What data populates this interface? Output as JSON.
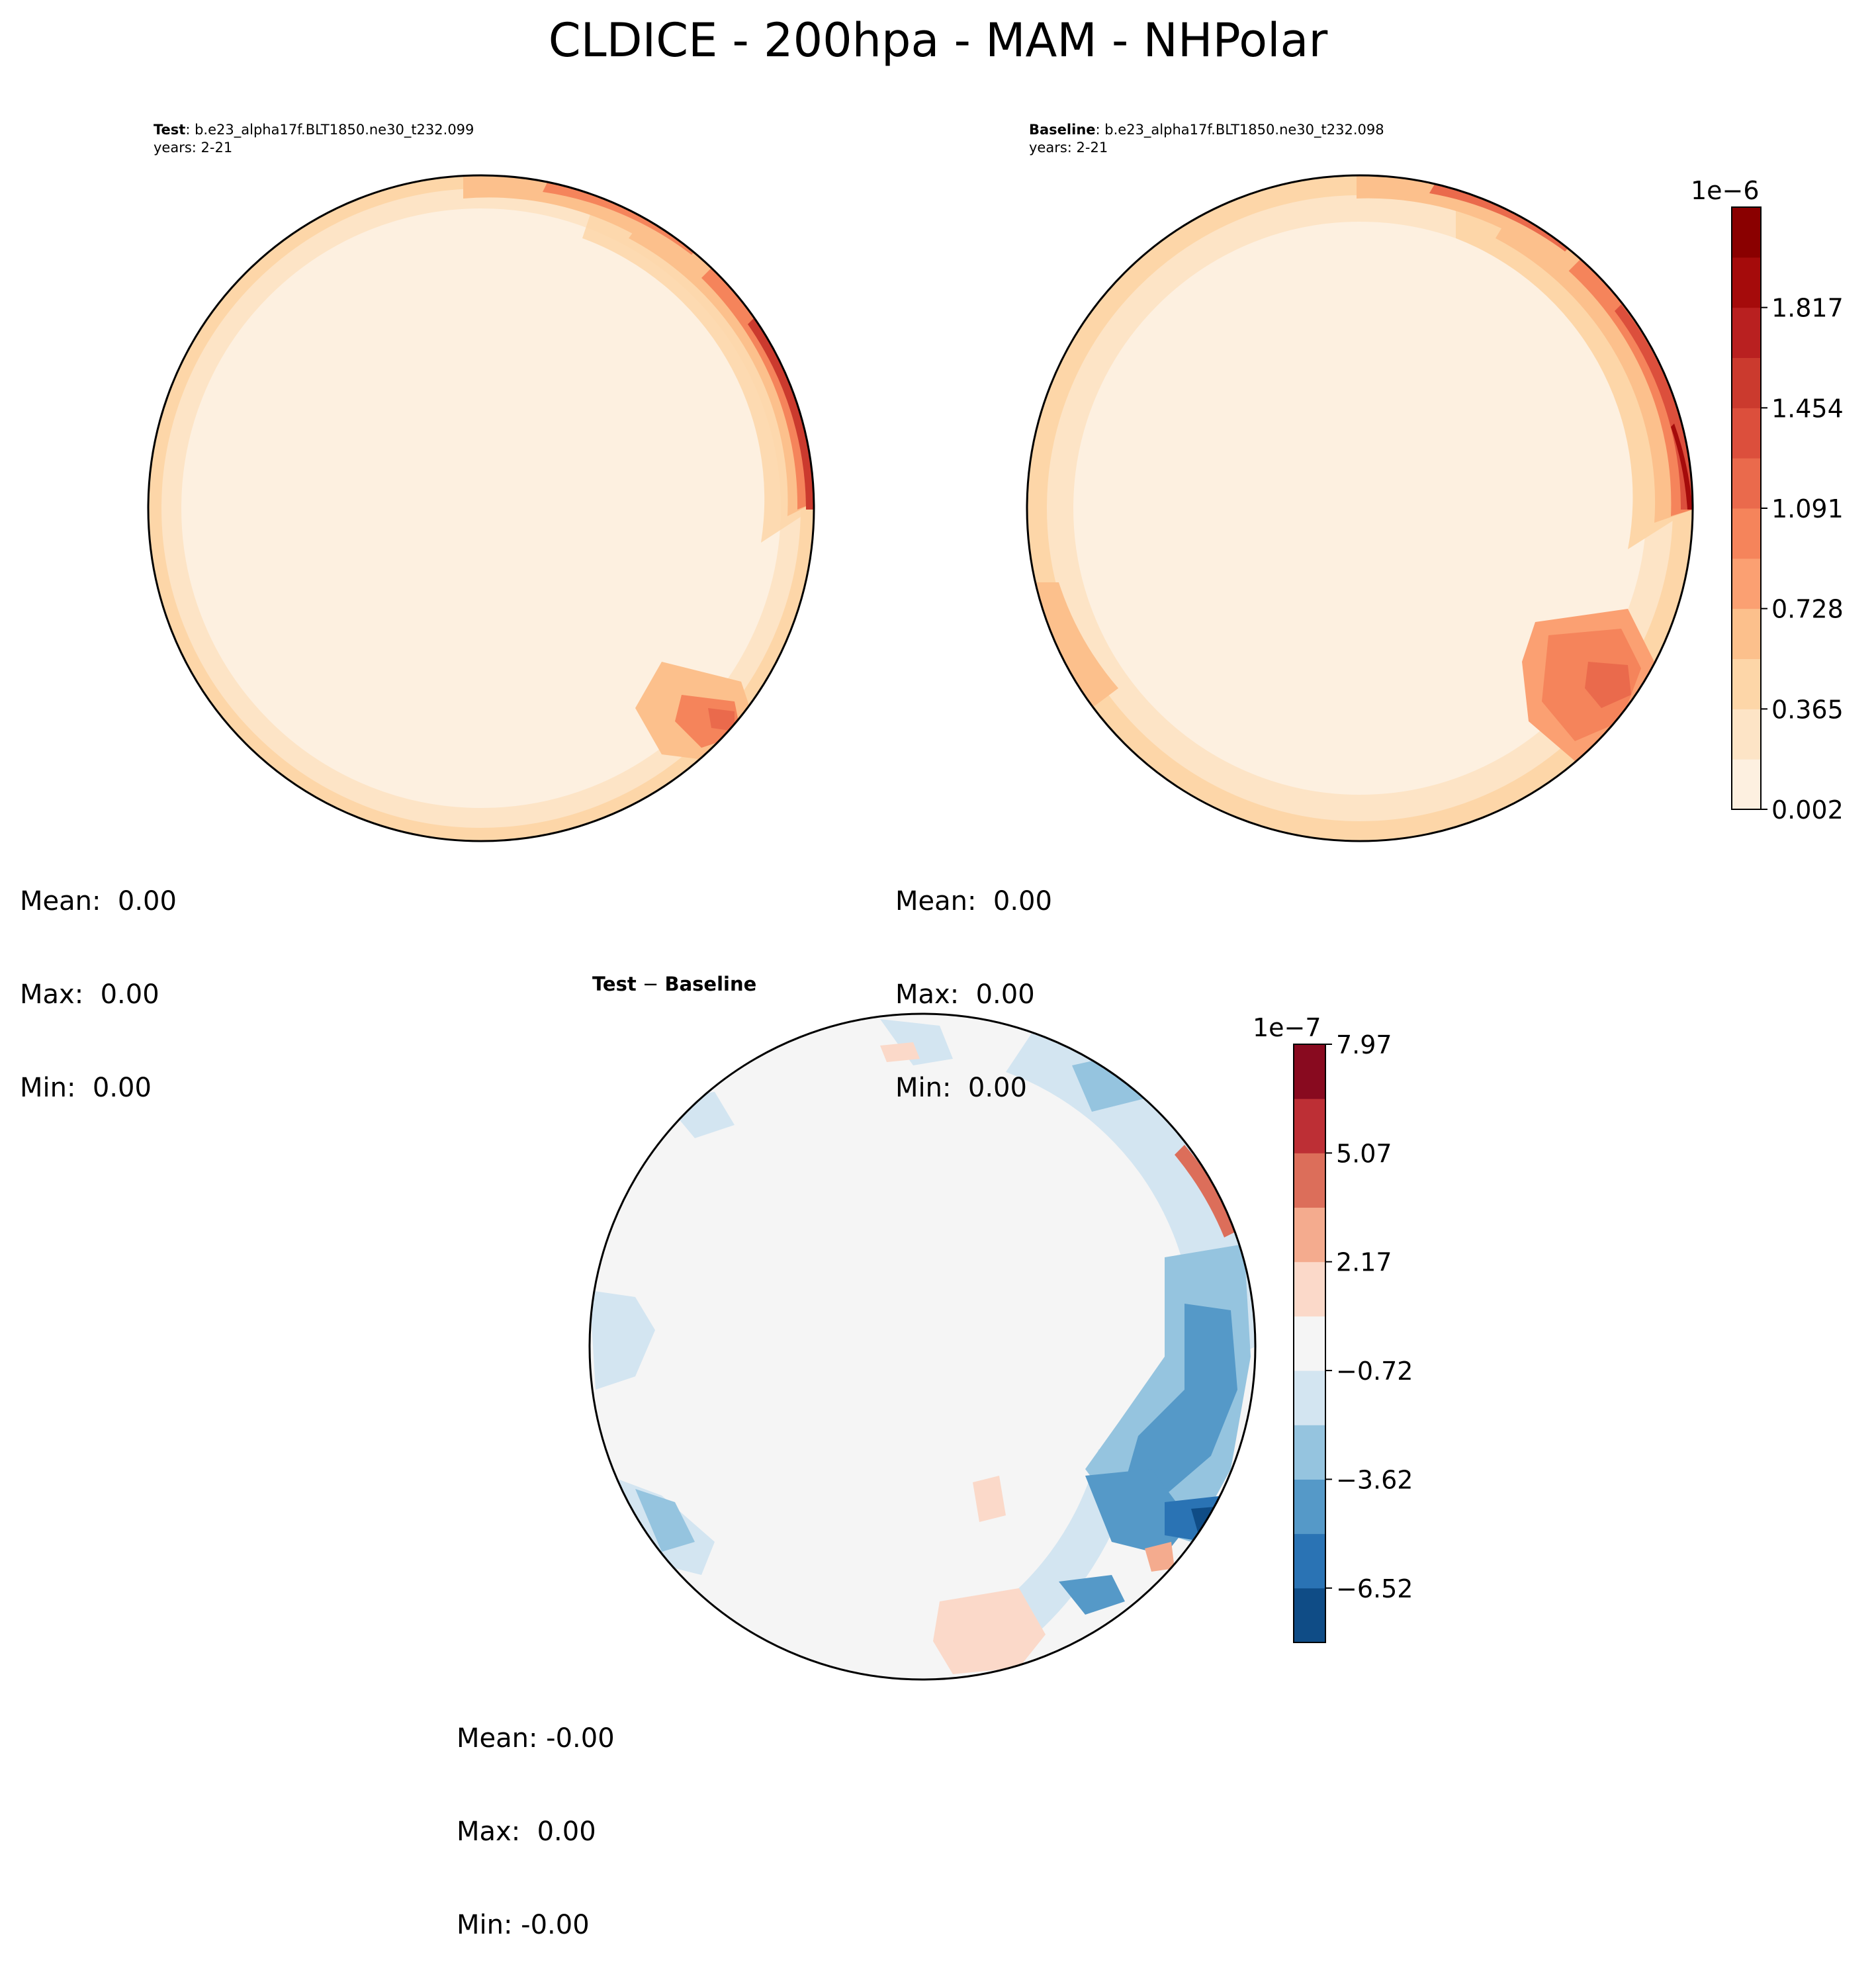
{
  "figure_title": "CLDICE - 200hpa - MAM - NHPolar",
  "test_panel": {
    "label": "Test",
    "case": "b.e23_alpha17f.BLT1850.ne30_t232.099",
    "years": "years: 2-21",
    "stats": {
      "mean": "Mean:  0.00",
      "max": "Max:  0.00",
      "min": "Min:  0.00"
    }
  },
  "baseline_panel": {
    "label": "Baseline",
    "case": "b.e23_alpha17f.BLT1850.ne30_t232.098",
    "years": "years: 2-21",
    "stats": {
      "mean": "Mean:  0.00",
      "max": "Max:  0.00",
      "min": "Min:  0.00"
    }
  },
  "diff_panel": {
    "title_part1": "Test",
    "title_sep": " − ",
    "title_part2": "Baseline",
    "stats": {
      "mean": "Mean: -0.00",
      "max": "Max:  0.00",
      "min": "Min: -0.00"
    }
  },
  "colorbar_main": {
    "exponent_label": "1e−6",
    "tick_labels": [
      "0.002",
      "0.365",
      "0.728",
      "1.091",
      "1.454",
      "1.817"
    ],
    "colors": [
      "#fdf0e0",
      "#fde4c6",
      "#fdd6a8",
      "#fcc08c",
      "#fba072",
      "#f5845b",
      "#ea6a4c",
      "#dc4f3c",
      "#cb3a2e",
      "#b92020",
      "#a50b0b",
      "#8a0000"
    ]
  },
  "colorbar_diff": {
    "exponent_label": "1e−7",
    "tick_labels": [
      "7.97",
      "5.07",
      "2.17",
      "−0.72",
      "−3.62",
      "−6.52"
    ],
    "colors": [
      "#0f4c86",
      "#2a73b4",
      "#5599c8",
      "#95c4df",
      "#d3e5f1",
      "#f5f5f5",
      "#fbd9c9",
      "#f4ab8e",
      "#dc6e5a",
      "#bd2f35",
      "#880a1f"
    ]
  },
  "colors": {
    "land_outline": "#000000",
    "map_background": "#fdf0e0",
    "diff_background": "#f5f5f5"
  }
}
